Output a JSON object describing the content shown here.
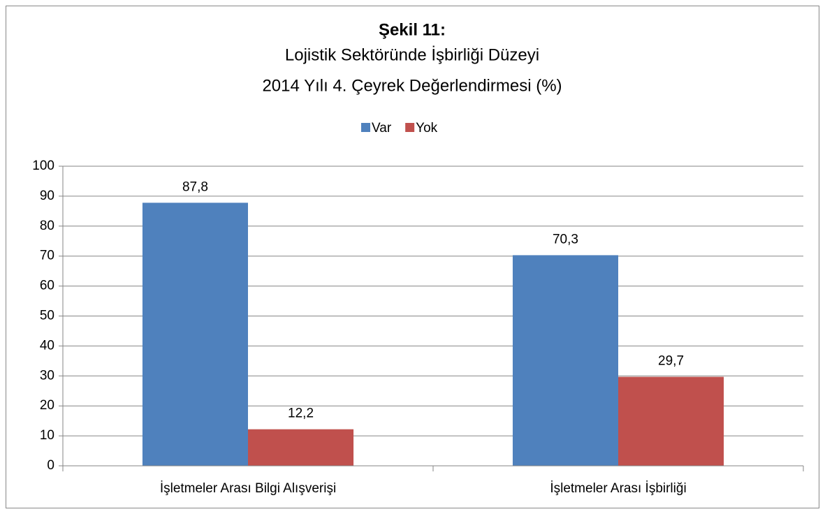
{
  "chart_data": {
    "type": "bar",
    "title": "Şekil 11:",
    "subtitle": [
      "Lojistik Sektöründe İşbirliği Düzeyi",
      "2014 Yılı 4. Çeyrek Değerlendirmesi (%)"
    ],
    "categories": [
      "İşletmeler Arası Bilgi Alışverişi",
      "İşletmeler Arası İşbirliği"
    ],
    "series": [
      {
        "name": "Var",
        "color": "#4f81bd",
        "values": [
          87.8,
          70.3
        ],
        "value_labels": [
          "87,8",
          "70,3"
        ]
      },
      {
        "name": "Yok",
        "color": "#c0504d",
        "values": [
          12.2,
          29.7
        ],
        "value_labels": [
          "12,2",
          "29,7"
        ]
      }
    ],
    "ylim": [
      0,
      100
    ],
    "yticks": [
      0,
      10,
      20,
      30,
      40,
      50,
      60,
      70,
      80,
      90,
      100
    ],
    "grid": true,
    "legend": "top"
  }
}
